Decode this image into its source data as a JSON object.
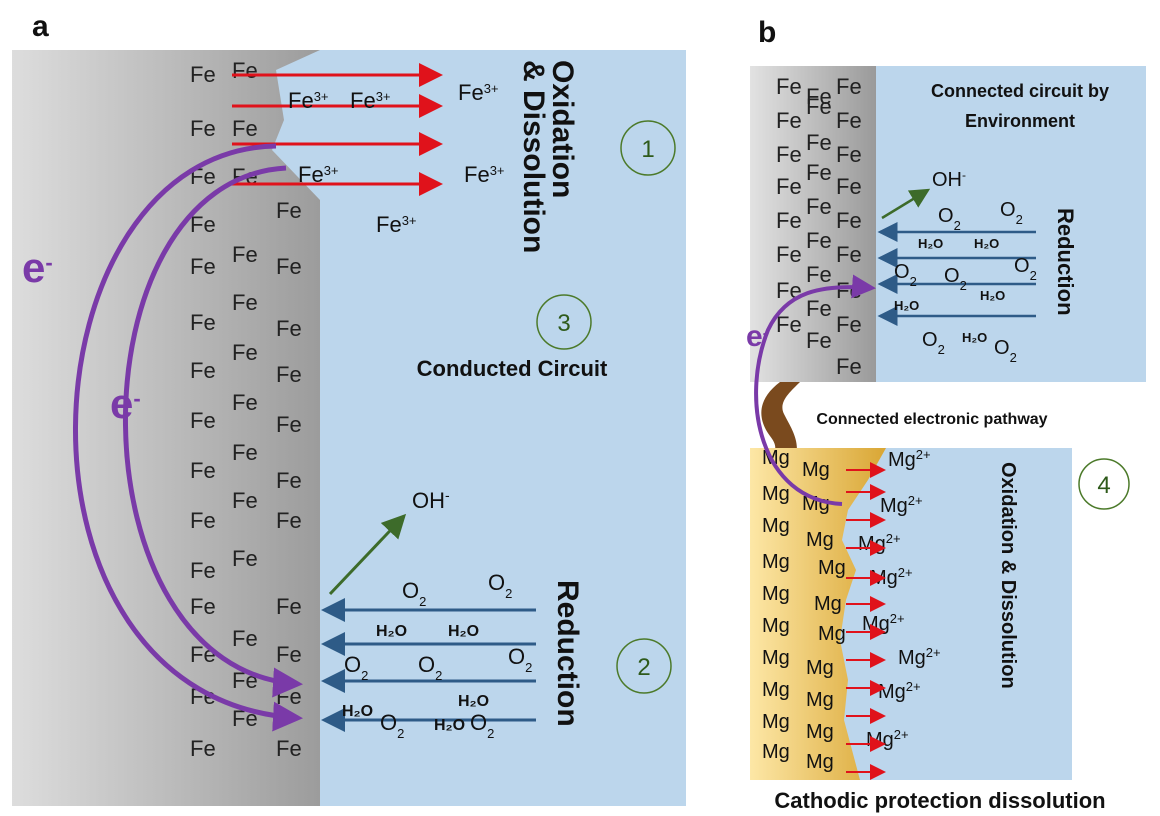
{
  "panel_a": {
    "letter": "a",
    "oxidation_label_1": "Oxidation",
    "oxidation_label_2": "& Dissolution",
    "reduction_label": "Reduction",
    "circuit_label": "Conducted Circuit",
    "circle_1": "1",
    "circle_2": "2",
    "circle_3": "3",
    "electron": "e",
    "electron_sup": "-",
    "fe": "Fe",
    "fe3": "Fe",
    "fe3_sup": "3+",
    "oh": "OH",
    "oh_sup": "-",
    "o2": "O",
    "o2_sub": "2",
    "h2o": "H₂O"
  },
  "panel_b": {
    "letter": "b",
    "title_line_1": "Connected circuit by",
    "title_line_2": "Environment",
    "reduction_label": "Reduction",
    "pathway_label": "Connected electronic pathway",
    "oxidation_label": "Oxidation & Dissolution",
    "bottom_label": "Cathodic protection dissolution",
    "circle_4": "4",
    "mg": "Mg",
    "mg2": "Mg",
    "mg2_sup": "2+"
  },
  "colors": {
    "oxidation_arrow": "#e0121b",
    "reduction_arrow": "#2e5b87",
    "electron_path": "#7a3aa8",
    "water": "#bcd6ec",
    "iron_dark": "#a8a8a8",
    "iron_light": "#dcdcdc",
    "magnesium": "#e8b84a",
    "pathway": "#7a4a1e",
    "oh_arrow": "#3d6b2a"
  }
}
